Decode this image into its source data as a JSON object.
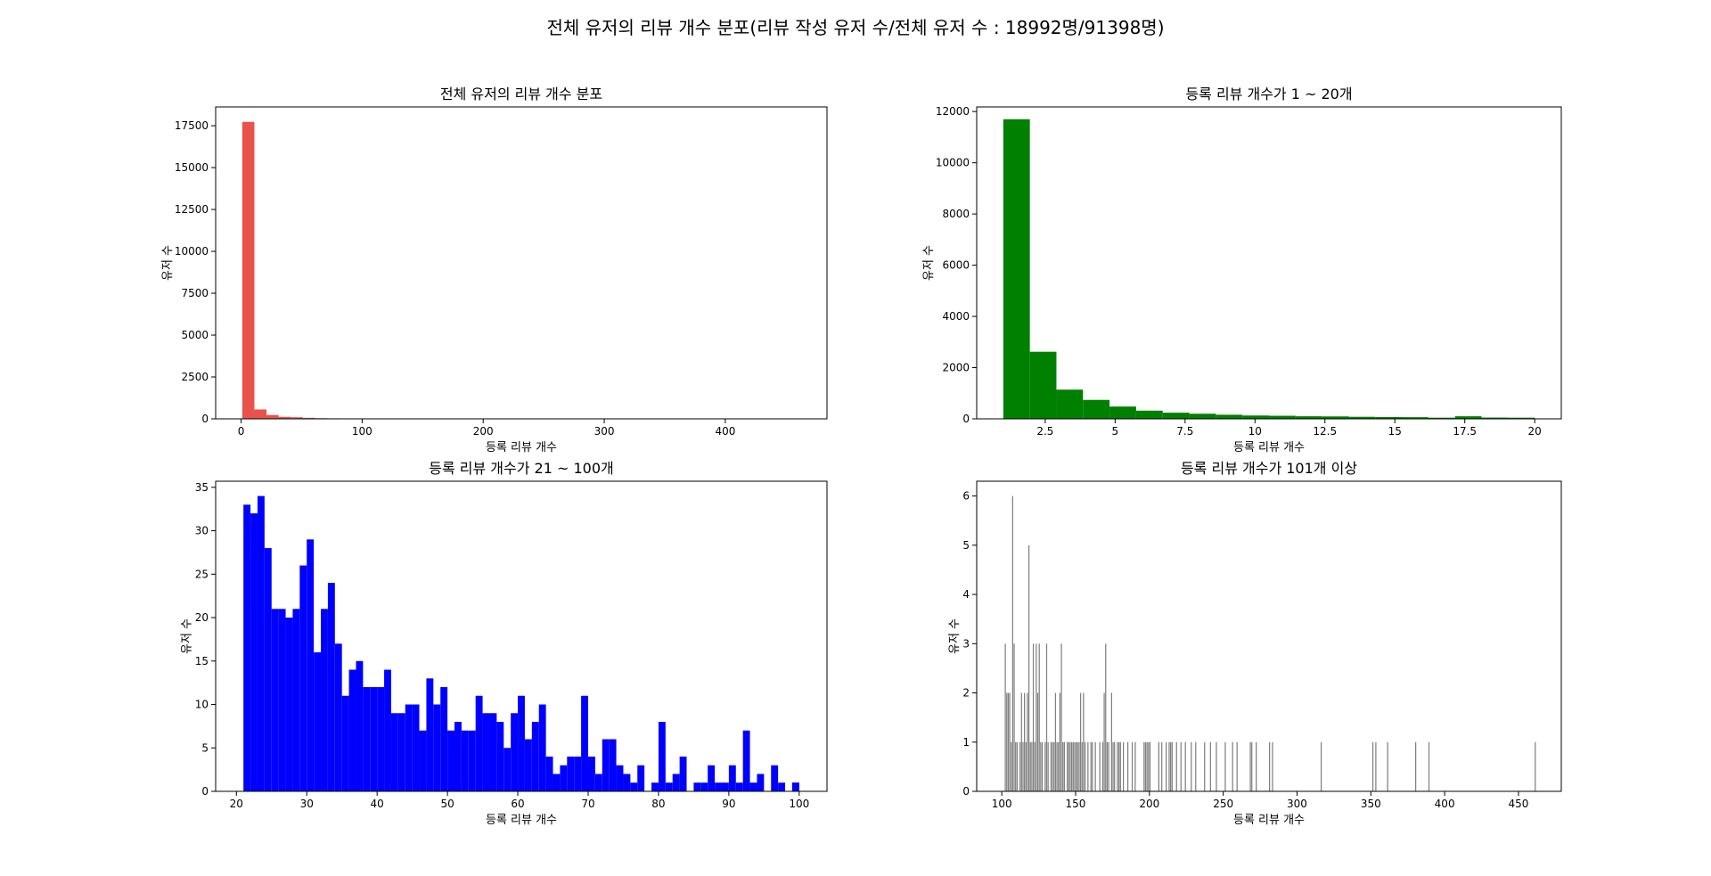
{
  "figure": {
    "suptitle": "전체 유저의 리뷰 개수 분포(리뷰 작성 유저 수/전체 유저 수 : 18992명/91398명)"
  },
  "chart_data": [
    {
      "type": "bar",
      "title": "전체 유저의 리뷰 개수 분포",
      "xlabel": "등록 리뷰 개수",
      "ylabel": "유저 수",
      "color": "#e8524a",
      "xlim": [
        -21,
        484
      ],
      "ylim": [
        0,
        18622
      ],
      "xticks": [
        0,
        100,
        200,
        300,
        400
      ],
      "yticks": [
        0,
        2500,
        5000,
        7500,
        10000,
        12500,
        15000,
        17500
      ],
      "bin_width": 10,
      "bins": [
        [
          1,
          17730
        ],
        [
          11,
          560
        ],
        [
          21,
          230
        ],
        [
          31,
          120
        ],
        [
          41,
          95
        ],
        [
          51,
          60
        ],
        [
          61,
          40
        ],
        [
          71,
          30
        ],
        [
          81,
          15
        ],
        [
          91,
          12
        ],
        [
          101,
          10
        ],
        [
          111,
          9
        ],
        [
          121,
          8
        ],
        [
          131,
          6
        ],
        [
          141,
          5
        ],
        [
          151,
          5
        ],
        [
          161,
          4
        ],
        [
          171,
          3
        ],
        [
          181,
          2
        ],
        [
          191,
          2
        ],
        [
          201,
          2
        ],
        [
          211,
          2
        ],
        [
          221,
          1
        ],
        [
          231,
          1
        ],
        [
          241,
          1
        ],
        [
          251,
          1
        ],
        [
          261,
          1
        ],
        [
          271,
          1
        ],
        [
          281,
          1
        ],
        [
          311,
          1
        ],
        [
          351,
          1
        ],
        [
          361,
          1
        ],
        [
          381,
          1
        ],
        [
          451,
          1
        ]
      ]
    },
    {
      "type": "bar",
      "title": "등록 리뷰 개수가 1 ~ 20개",
      "xlabel": "등록 리뷰 개수",
      "ylabel": "유저 수",
      "color": "#008000",
      "xlim": [
        0.05,
        20.95
      ],
      "ylim": [
        0,
        12180
      ],
      "xticks": [
        2.5,
        5.0,
        7.5,
        10.0,
        12.5,
        15.0,
        17.5,
        20.0
      ],
      "yticks": [
        0,
        2000,
        4000,
        6000,
        8000,
        10000,
        12000
      ],
      "bin_width": 0.95,
      "bins": [
        [
          1.0,
          11700
        ],
        [
          1.95,
          2620
        ],
        [
          2.9,
          1140
        ],
        [
          3.85,
          740
        ],
        [
          4.8,
          480
        ],
        [
          5.75,
          320
        ],
        [
          6.7,
          240
        ],
        [
          7.65,
          200
        ],
        [
          8.6,
          160
        ],
        [
          9.55,
          130
        ],
        [
          10.5,
          120
        ],
        [
          11.45,
          100
        ],
        [
          12.4,
          95
        ],
        [
          13.35,
          80
        ],
        [
          14.3,
          70
        ],
        [
          15.25,
          65
        ],
        [
          16.2,
          45
        ],
        [
          17.15,
          100
        ],
        [
          18.1,
          50
        ],
        [
          19.05,
          45
        ]
      ]
    },
    {
      "type": "bar",
      "title": "등록 리뷰 개수가 21 ~ 100개",
      "xlabel": "등록 리뷰 개수",
      "ylabel": "유저 수",
      "color": "#0000ff",
      "xlim": [
        17.05,
        103.95
      ],
      "ylim": [
        0,
        35.7
      ],
      "xticks": [
        20,
        30,
        40,
        50,
        60,
        70,
        80,
        90,
        100
      ],
      "yticks": [
        0,
        5,
        10,
        15,
        20,
        25,
        30,
        35
      ],
      "bin_width": 1,
      "x": [
        21,
        22,
        23,
        24,
        25,
        26,
        27,
        28,
        29,
        30,
        31,
        32,
        33,
        34,
        35,
        36,
        37,
        38,
        39,
        40,
        41,
        42,
        43,
        44,
        45,
        46,
        47,
        48,
        49,
        50,
        51,
        52,
        53,
        54,
        55,
        56,
        57,
        58,
        59,
        60,
        61,
        62,
        63,
        64,
        65,
        66,
        67,
        68,
        69,
        70,
        71,
        72,
        73,
        74,
        75,
        76,
        77,
        78,
        79,
        80,
        81,
        82,
        83,
        84,
        85,
        86,
        87,
        88,
        89,
        90,
        91,
        92,
        93,
        94,
        95,
        96,
        97,
        98,
        99
      ],
      "values": [
        33,
        32,
        34,
        28,
        21,
        21,
        20,
        21,
        26,
        29,
        16,
        21,
        24,
        17,
        11,
        14,
        15,
        12,
        12,
        12,
        14,
        9,
        9,
        10,
        10,
        7,
        13,
        10,
        12,
        7,
        8,
        7,
        7,
        11,
        9,
        9,
        8,
        5,
        9,
        11,
        6,
        8,
        10,
        4,
        2,
        3,
        4,
        4,
        11,
        4,
        2,
        6,
        6,
        3,
        2,
        1,
        3,
        0,
        1,
        8,
        1,
        2,
        4,
        0,
        1,
        1,
        3,
        1,
        1,
        3,
        1,
        7,
        1,
        2,
        0,
        3,
        1,
        0,
        1
      ],
      "extra_bins": [
        [
          99,
          1
        ]
      ]
    },
    {
      "type": "bar",
      "title": "등록 리뷰 개수가 101개 이상",
      "xlabel": "등록 리뷰 개수",
      "ylabel": "유저 수",
      "color": "#808080",
      "xlim": [
        83,
        479
      ],
      "ylim": [
        0,
        6.3
      ],
      "xticks": [
        100,
        150,
        200,
        250,
        300,
        350,
        400,
        450
      ],
      "yticks": [
        0,
        1,
        2,
        3,
        4,
        5,
        6
      ],
      "bin_width": 0.75,
      "bins": [
        [
          102,
          3
        ],
        [
          103,
          2
        ],
        [
          104,
          2
        ],
        [
          105,
          2
        ],
        [
          106,
          1
        ],
        [
          107,
          6
        ],
        [
          108,
          3
        ],
        [
          109,
          1
        ],
        [
          110,
          1
        ],
        [
          112,
          1
        ],
        [
          113,
          2
        ],
        [
          114,
          1
        ],
        [
          115,
          2
        ],
        [
          116,
          1
        ],
        [
          117,
          2
        ],
        [
          118,
          5
        ],
        [
          119,
          1
        ],
        [
          120,
          1
        ],
        [
          121,
          3
        ],
        [
          122,
          1
        ],
        [
          123,
          3
        ],
        [
          124,
          2
        ],
        [
          125,
          3
        ],
        [
          126,
          1
        ],
        [
          127,
          1
        ],
        [
          129,
          1
        ],
        [
          130,
          3
        ],
        [
          131,
          1
        ],
        [
          133,
          1
        ],
        [
          134,
          1
        ],
        [
          135,
          1
        ],
        [
          136,
          2
        ],
        [
          137,
          1
        ],
        [
          138,
          1
        ],
        [
          139,
          2
        ],
        [
          140,
          3
        ],
        [
          141,
          1
        ],
        [
          142,
          1
        ],
        [
          144,
          1
        ],
        [
          145,
          1
        ],
        [
          146,
          1
        ],
        [
          147,
          1
        ],
        [
          148,
          1
        ],
        [
          149,
          1
        ],
        [
          150,
          1
        ],
        [
          151,
          1
        ],
        [
          152,
          1
        ],
        [
          153,
          2
        ],
        [
          154,
          1
        ],
        [
          155,
          2
        ],
        [
          156,
          1
        ],
        [
          158,
          1
        ],
        [
          160,
          1
        ],
        [
          161,
          1
        ],
        [
          163,
          1
        ],
        [
          166,
          1
        ],
        [
          168,
          1
        ],
        [
          169,
          2
        ],
        [
          170,
          3
        ],
        [
          171,
          1
        ],
        [
          172,
          1
        ],
        [
          174,
          2
        ],
        [
          175,
          1
        ],
        [
          176,
          1
        ],
        [
          178,
          1
        ],
        [
          179,
          1
        ],
        [
          180,
          1
        ],
        [
          182,
          1
        ],
        [
          185,
          1
        ],
        [
          188,
          1
        ],
        [
          190,
          1
        ],
        [
          196,
          1
        ],
        [
          197,
          1
        ],
        [
          198,
          1
        ],
        [
          199,
          1
        ],
        [
          200,
          1
        ],
        [
          206,
          1
        ],
        [
          208,
          1
        ],
        [
          211,
          1
        ],
        [
          213,
          1
        ],
        [
          214,
          1
        ],
        [
          215,
          1
        ],
        [
          218,
          1
        ],
        [
          221,
          1
        ],
        [
          224,
          1
        ],
        [
          228,
          1
        ],
        [
          231,
          1
        ],
        [
          237,
          1
        ],
        [
          241,
          1
        ],
        [
          245,
          1
        ],
        [
          251,
          1
        ],
        [
          256,
          1
        ],
        [
          259,
          1
        ],
        [
          268,
          1
        ],
        [
          269,
          1
        ],
        [
          272,
          1
        ],
        [
          281,
          1
        ],
        [
          283,
          1
        ],
        [
          316,
          1
        ],
        [
          351,
          1
        ],
        [
          353,
          1
        ],
        [
          361,
          1
        ],
        [
          380,
          1
        ],
        [
          389,
          1
        ],
        [
          461,
          1
        ]
      ]
    }
  ]
}
